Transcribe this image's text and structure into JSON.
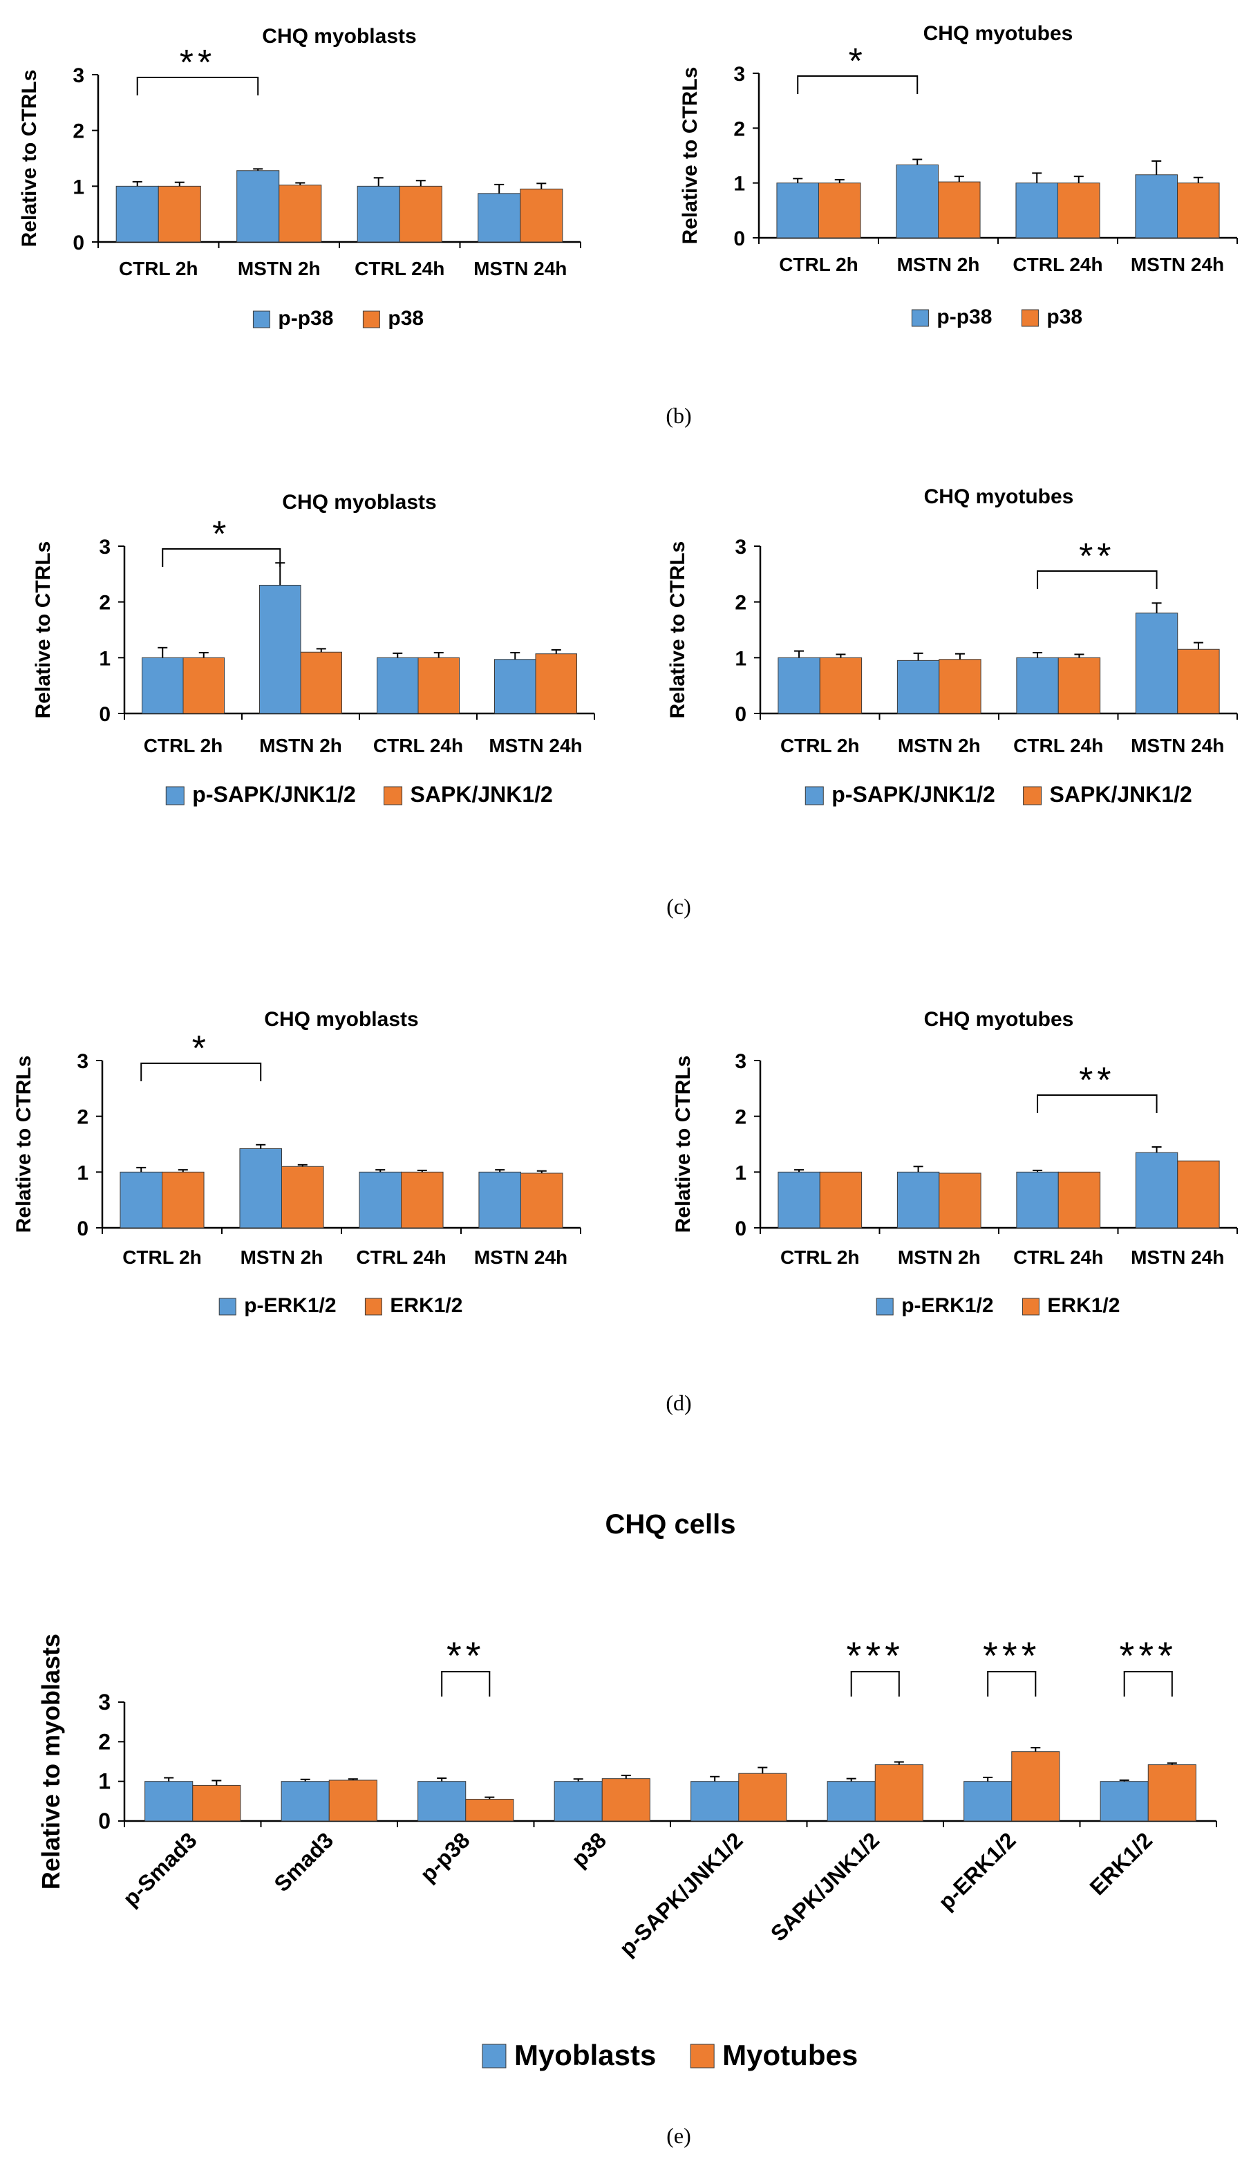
{
  "colors": {
    "series1": "#5B9BD5",
    "series2": "#ED7D31",
    "axis": "#000000"
  },
  "captions": {
    "b": "(b)",
    "c": "(c)",
    "d": "(d)",
    "e": "(e)"
  },
  "chart_data": [
    {
      "type": "bar",
      "panel": "b-left",
      "title": "CHQ myoblasts",
      "ylabel": "Relative to CTRLs",
      "xlabel": "",
      "ylim": [
        0,
        3
      ],
      "yticks": [
        0,
        1,
        2,
        3
      ],
      "categories": [
        "CTRL 2h",
        "MSTN 2h",
        "CTRL 24h",
        "MSTN 24h"
      ],
      "series": [
        {
          "name": "p-p38",
          "values": [
            1.0,
            1.28,
            1.0,
            0.87
          ],
          "errors": [
            0.08,
            0.03,
            0.15,
            0.16
          ]
        },
        {
          "name": "p38",
          "values": [
            1.0,
            1.02,
            1.0,
            0.95
          ],
          "errors": [
            0.07,
            0.04,
            0.1,
            0.1
          ]
        }
      ],
      "significance": [
        {
          "from": 0,
          "to": 1,
          "label": "**"
        }
      ],
      "legend": "bottom"
    },
    {
      "type": "bar",
      "panel": "b-right",
      "title": "CHQ myotubes",
      "ylabel": "Relative to  CTRLs",
      "xlabel": "",
      "ylim": [
        0,
        3
      ],
      "yticks": [
        0,
        1,
        2,
        3
      ],
      "categories": [
        "CTRL 2h",
        "MSTN 2h",
        "CTRL 24h",
        "MSTN 24h"
      ],
      "series": [
        {
          "name": "p-p38",
          "values": [
            1.0,
            1.33,
            1.0,
            1.15
          ],
          "errors": [
            0.08,
            0.1,
            0.18,
            0.25
          ]
        },
        {
          "name": "p38",
          "values": [
            1.0,
            1.02,
            1.0,
            1.0
          ],
          "errors": [
            0.06,
            0.1,
            0.12,
            0.1
          ]
        }
      ],
      "significance": [
        {
          "from": 0,
          "to": 1,
          "label": "*"
        }
      ],
      "legend": "bottom"
    },
    {
      "type": "bar",
      "panel": "c-left",
      "title": "CHQ myoblasts",
      "ylabel": "Relative to CTRLs",
      "xlabel": "",
      "ylim": [
        0,
        3
      ],
      "yticks": [
        0,
        1,
        2,
        3
      ],
      "categories": [
        "CTRL 2h",
        "MSTN 2h",
        "CTRL 24h",
        "MSTN 24h"
      ],
      "series": [
        {
          "name": "p-SAPK/JNK1/2",
          "values": [
            1.0,
            2.3,
            1.0,
            0.97
          ],
          "errors": [
            0.18,
            0.4,
            0.08,
            0.12
          ]
        },
        {
          "name": "SAPK/JNK1/2",
          "values": [
            1.0,
            1.1,
            1.0,
            1.07
          ],
          "errors": [
            0.09,
            0.06,
            0.09,
            0.07
          ]
        }
      ],
      "significance": [
        {
          "from": 0,
          "to": 1,
          "label": "*"
        }
      ],
      "legend": "bottom"
    },
    {
      "type": "bar",
      "panel": "c-right",
      "title": "CHQ myotubes",
      "ylabel": "Relative to CTRLs",
      "xlabel": "",
      "ylim": [
        0,
        3
      ],
      "yticks": [
        0,
        1,
        2,
        3
      ],
      "categories": [
        "CTRL 2h",
        "MSTN 2h",
        "CTRL 24h",
        "MSTN 24h"
      ],
      "series": [
        {
          "name": "p-SAPK/JNK1/2",
          "values": [
            1.0,
            0.95,
            1.0,
            1.8
          ],
          "errors": [
            0.12,
            0.13,
            0.09,
            0.18
          ]
        },
        {
          "name": "SAPK/JNK1/2",
          "values": [
            1.0,
            0.97,
            1.0,
            1.15
          ],
          "errors": [
            0.06,
            0.1,
            0.06,
            0.12
          ]
        }
      ],
      "significance": [
        {
          "from": 2,
          "to": 3,
          "label": "**"
        }
      ],
      "legend": "bottom"
    },
    {
      "type": "bar",
      "panel": "d-left",
      "title": "CHQ myoblasts",
      "ylabel": "Relative to CTRLs",
      "xlabel": "",
      "ylim": [
        0,
        3
      ],
      "yticks": [
        0,
        1,
        2,
        3
      ],
      "categories": [
        "CTRL 2h",
        "MSTN 2h",
        "CTRL 24h",
        "MSTN 24h"
      ],
      "series": [
        {
          "name": "p-ERK1/2",
          "values": [
            1.0,
            1.42,
            1.0,
            1.0
          ],
          "errors": [
            0.08,
            0.07,
            0.04,
            0.04
          ]
        },
        {
          "name": "ERK1/2",
          "values": [
            1.0,
            1.1,
            1.0,
            0.98
          ],
          "errors": [
            0.04,
            0.03,
            0.03,
            0.04
          ]
        }
      ],
      "significance": [
        {
          "from": 0,
          "to": 1,
          "label": "*"
        }
      ],
      "legend": "bottom"
    },
    {
      "type": "bar",
      "panel": "d-right",
      "title": "CHQ myotubes",
      "ylabel": "Relative to  CTRLs",
      "xlabel": "",
      "ylim": [
        0,
        3
      ],
      "yticks": [
        0,
        1,
        2,
        3
      ],
      "categories": [
        "CTRL 2h",
        "MSTN 2h",
        "CTRL 24h",
        "MSTN 24h"
      ],
      "series": [
        {
          "name": "p-ERK1/2",
          "values": [
            1.0,
            1.0,
            1.0,
            1.35
          ],
          "errors": [
            0.04,
            0.1,
            0.03,
            0.1
          ]
        },
        {
          "name": "ERK1/2",
          "values": [
            1.0,
            0.98,
            1.0,
            1.2
          ],
          "errors": [
            0.0,
            0.0,
            0.0,
            0.0
          ]
        }
      ],
      "significance": [
        {
          "from": 2,
          "to": 3,
          "label": "**"
        }
      ],
      "legend": "bottom"
    },
    {
      "type": "bar",
      "panel": "e",
      "title": "CHQ cells",
      "ylabel": "Relative to myoblasts",
      "xlabel": "",
      "ylim": [
        0,
        3
      ],
      "yticks": [
        0,
        1,
        2,
        3
      ],
      "categories": [
        "p-Smad3",
        "Smad3",
        "p-p38",
        "p38",
        "p-SAPK/JNK1/2",
        "SAPK/JNK1/2",
        "p-ERK1/2",
        "ERK1/2"
      ],
      "series": [
        {
          "name": "Myoblasts",
          "values": [
            1.0,
            1.0,
            1.0,
            1.0,
            1.0,
            1.0,
            1.0,
            1.0
          ],
          "errors": [
            0.09,
            0.05,
            0.08,
            0.06,
            0.12,
            0.07,
            0.1,
            0.03
          ]
        },
        {
          "name": "Myotubes",
          "values": [
            0.9,
            1.03,
            0.55,
            1.07,
            1.2,
            1.42,
            1.75,
            1.42
          ],
          "errors": [
            0.12,
            0.03,
            0.05,
            0.08,
            0.15,
            0.07,
            0.1,
            0.04
          ]
        }
      ],
      "significance": [
        {
          "at": 2,
          "label": "**"
        },
        {
          "at": 5,
          "label": "***"
        },
        {
          "at": 6,
          "label": "***"
        },
        {
          "at": 7,
          "label": "***"
        }
      ],
      "legend": "bottom"
    }
  ]
}
